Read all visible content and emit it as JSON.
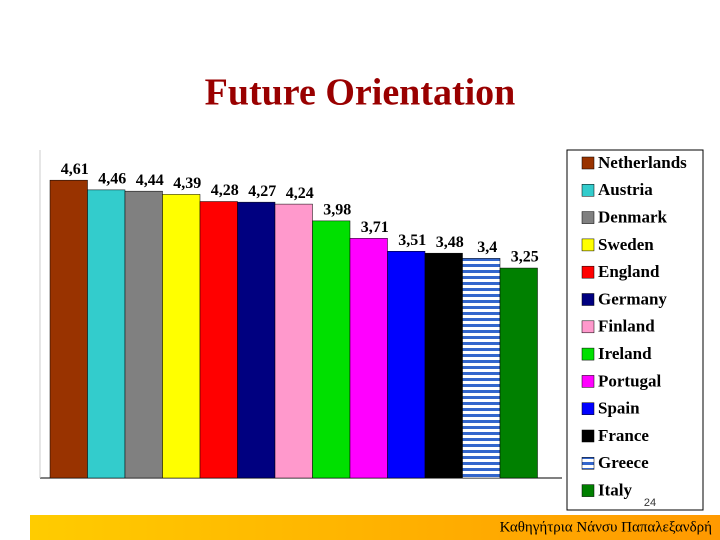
{
  "chart_data": {
    "type": "bar",
    "title": "Future Orientation",
    "ylim": [
      0,
      5
    ],
    "legend": "right",
    "series": [
      {
        "name": "Netherlands",
        "color": "#993300",
        "values": [
          4.61
        ],
        "value_labels": [
          "4,61"
        ]
      },
      {
        "name": "Austria",
        "color": "#33cccc",
        "values": [
          4.46
        ],
        "value_labels": [
          "4,46"
        ]
      },
      {
        "name": "Denmark",
        "color": "#808080",
        "values": [
          4.44
        ],
        "value_labels": [
          "4,44"
        ]
      },
      {
        "name": "Sweden",
        "color": "#ffff00",
        "values": [
          4.39
        ],
        "value_labels": [
          "4,39"
        ]
      },
      {
        "name": "England",
        "color": "#ff0000",
        "values": [
          4.28
        ],
        "value_labels": [
          "4,28"
        ]
      },
      {
        "name": "Germany",
        "color": "#000080",
        "values": [
          4.27
        ],
        "value_labels": [
          "4,27"
        ]
      },
      {
        "name": "Finland",
        "color": "#ff99cc",
        "values": [
          4.24
        ],
        "value_labels": [
          "4,24"
        ]
      },
      {
        "name": "Ireland",
        "color": "#00e000",
        "values": [
          3.98
        ],
        "value_labels": [
          "3,98"
        ]
      },
      {
        "name": "Portugal",
        "color": "#ff00ff",
        "values": [
          3.71
        ],
        "value_labels": [
          "3,71"
        ]
      },
      {
        "name": "Spain",
        "color": "#0000ff",
        "values": [
          3.51
        ],
        "value_labels": [
          "3,51"
        ]
      },
      {
        "name": "France",
        "color": "#000000",
        "values": [
          3.48
        ],
        "value_labels": [
          "3,48"
        ]
      },
      {
        "name": "Greece",
        "color": "#3366cc",
        "pattern": "stripes",
        "values": [
          3.4
        ],
        "value_labels": [
          "3,4"
        ]
      },
      {
        "name": "Italy",
        "color": "#008000",
        "values": [
          3.25
        ],
        "value_labels": [
          "3,25"
        ]
      }
    ]
  },
  "slide_number": "24",
  "footer": "Καθηγήτρια Νάνσυ Παπαλεξανδρή"
}
